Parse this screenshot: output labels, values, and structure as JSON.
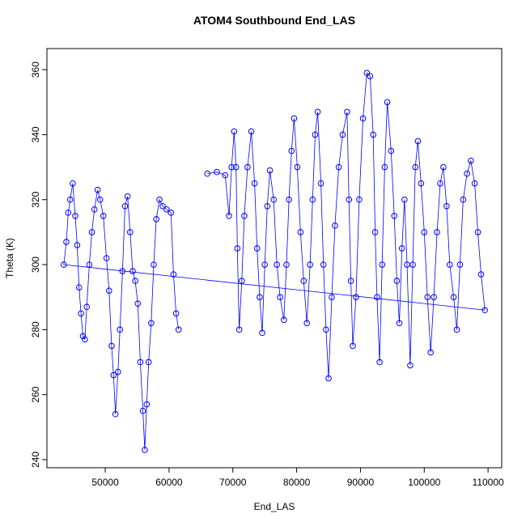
{
  "chart_data": {
    "type": "line",
    "title": "ATOM4 Southbound End_LAS",
    "x_label": "End_LAS",
    "y_label": "Theta (K)",
    "markers": "open-circle",
    "x": [
      66000,
      67500,
      68800,
      69400,
      69800,
      70200,
      70500,
      70700,
      71000,
      71400,
      71800,
      72300,
      72900,
      73400,
      73800,
      74200,
      74600,
      75000,
      75400,
      75800,
      76400,
      76900,
      77400,
      78000,
      78400,
      78800,
      79200,
      79600,
      80100,
      80600,
      81100,
      81600,
      82100,
      82500,
      82900,
      83300,
      83800,
      84200,
      84600,
      85000,
      85500,
      86000,
      86600,
      87200,
      87900,
      88200,
      88500,
      88800,
      89300,
      89800,
      90400,
      91000,
      91500,
      92000,
      92300,
      92600,
      93000,
      93400,
      93800,
      94200,
      94800,
      95300,
      95700,
      96100,
      96500,
      96900,
      97300,
      97800,
      98200,
      98600,
      99000,
      99500,
      100000,
      100500,
      101000,
      101500,
      102000,
      102500,
      103000,
      103500,
      104000,
      104600,
      105100,
      105600,
      106100,
      106700,
      107300,
      107900,
      108400,
      108900,
      109500,
      43500,
      43900,
      44200,
      44500,
      44900,
      45300,
      45600,
      45900,
      46200,
      46500,
      46800,
      47100,
      47500,
      47900,
      48300,
      48800,
      49200,
      49700,
      50200,
      50600,
      51000,
      51300,
      51600,
      52000,
      52300,
      52700,
      53100,
      53500,
      53900,
      54300,
      54700,
      55100,
      55500,
      55900,
      56200,
      56500,
      56800,
      57200,
      57600,
      58000,
      58500,
      59000,
      59600,
      60300,
      60700,
      61100,
      61500
    ],
    "series": [
      {
        "color": "#0000ff",
        "values": [
          328,
          328.5,
          327.5,
          315,
          330,
          341,
          330,
          305,
          280,
          295,
          315,
          330,
          341,
          325,
          305,
          290,
          279,
          300,
          318,
          329,
          320,
          300,
          290,
          283,
          300,
          320,
          335,
          345,
          330,
          310,
          295,
          282,
          300,
          320,
          340,
          347,
          325,
          300,
          280,
          265,
          290,
          312,
          330,
          340,
          347,
          320,
          295,
          275,
          290,
          320,
          345,
          359,
          358,
          340,
          310,
          290,
          270,
          300,
          330,
          350,
          335,
          315,
          295,
          282,
          305,
          320,
          300,
          269,
          300,
          330,
          338,
          325,
          310,
          290,
          273,
          290,
          310,
          325,
          330,
          318,
          300,
          290,
          280,
          300,
          320,
          328,
          332,
          325,
          310,
          297,
          286,
          300,
          307,
          316,
          320,
          325,
          315,
          306,
          293,
          285,
          278,
          277,
          287,
          300,
          310,
          317,
          323,
          320,
          315,
          302,
          292,
          275,
          266,
          254,
          267,
          280,
          298,
          318,
          321,
          310,
          298,
          295,
          288,
          270,
          255,
          243,
          257,
          270,
          282,
          300,
          314,
          320,
          318,
          317,
          316,
          297,
          285,
          280
        ]
      }
    ],
    "xlim": [
      40860,
      112140
    ],
    "ylim": [
      237.5,
      366.5
    ],
    "xticks": [
      50000,
      60000,
      70000,
      80000,
      90000,
      100000,
      110000
    ],
    "yticks": [
      240,
      260,
      280,
      300,
      320,
      340,
      360
    ]
  }
}
